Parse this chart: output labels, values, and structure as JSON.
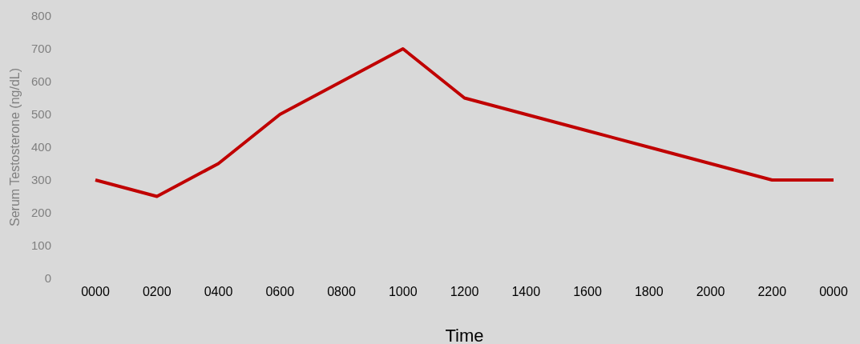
{
  "chart_data": {
    "type": "line",
    "xlabel": "Time",
    "ylabel": "Serum Testosterone (ng/dL)",
    "categories": [
      "0000",
      "0200",
      "0400",
      "0600",
      "0800",
      "1000",
      "1200",
      "1400",
      "1600",
      "1800",
      "2000",
      "2200",
      "0000"
    ],
    "series": [
      {
        "color": "#c00000",
        "values": [
          300,
          250,
          350,
          500,
          600,
          700,
          550,
          500,
          450,
          400,
          350,
          300,
          300
        ]
      }
    ],
    "ylim": [
      0,
      800
    ],
    "yticks": [
      0,
      100,
      200,
      300,
      400,
      500,
      600,
      700,
      800
    ],
    "grid": false,
    "marker": "none",
    "line_style": "solid"
  }
}
